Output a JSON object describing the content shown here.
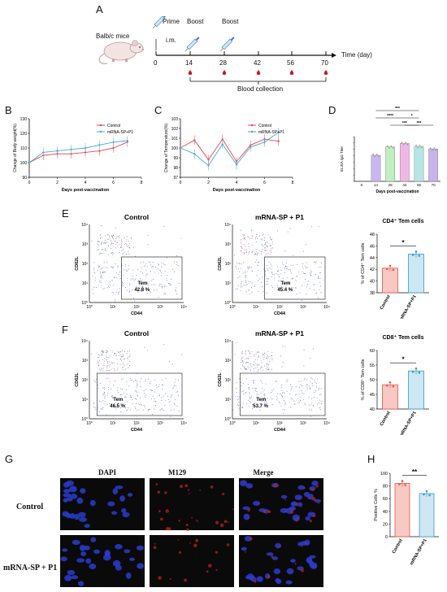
{
  "panels": {
    "A": "A",
    "B": "B",
    "C": "C",
    "D": "D",
    "E": "E",
    "F": "F",
    "G": "G",
    "H": "H"
  },
  "timeline": {
    "mouse_label": "Balb/c mice",
    "prime": "Prime",
    "route": "i.m.",
    "boost1": "Boost",
    "boost2": "Boost",
    "days": [
      "0",
      "14",
      "28",
      "42",
      "56",
      "70"
    ],
    "axis_label": "Time (day)",
    "blood_label": "Blood collection"
  },
  "chart_data": [
    {
      "panel": "B",
      "type": "line",
      "xlabel": "Days post-vaccination",
      "ylabel": "Change of Body weight(%)",
      "xlim": [
        0,
        8
      ],
      "ylim": [
        90,
        130
      ],
      "xticks": [
        "0",
        "2",
        "4",
        "6",
        "8"
      ],
      "yticks": [
        "90",
        "100",
        "110",
        "120",
        "130"
      ],
      "legend_position": "top-right",
      "x": [
        0,
        1,
        2,
        3,
        4,
        5,
        6,
        7
      ],
      "series": [
        {
          "name": "Control",
          "values": [
            100,
            105,
            106,
            106,
            107,
            108,
            110,
            114
          ],
          "color": "#e8474e"
        },
        {
          "name": "mRNA-SP+P1",
          "values": [
            100,
            107,
            108,
            109,
            110,
            112,
            114,
            115
          ],
          "color": "#4aa6d8"
        }
      ]
    },
    {
      "panel": "C",
      "type": "line",
      "xlabel": "Days post-vaccination",
      "ylabel": "Change of Temperature(%)",
      "xlim": [
        0,
        8
      ],
      "ylim": [
        97,
        103
      ],
      "xticks": [
        "0",
        "2",
        "4",
        "6",
        "8"
      ],
      "yticks": [
        "97",
        "98",
        "99",
        "100",
        "101",
        "102",
        "103"
      ],
      "legend_position": "top-right",
      "x": [
        0,
        1,
        2,
        3,
        4,
        5,
        6,
        7
      ],
      "series": [
        {
          "name": "Control",
          "values": [
            100,
            100.8,
            98.8,
            100.9,
            98.6,
            100.3,
            100.9,
            100.7
          ],
          "color": "#e8474e"
        },
        {
          "name": "mRNA-SP+P1",
          "values": [
            100,
            99.4,
            98.2,
            100.4,
            98.3,
            100.1,
            100.6,
            101.6
          ],
          "color": "#4aa6d8"
        }
      ]
    },
    {
      "panel": "D",
      "type": "bar",
      "xlabel": "Days post-vaccination",
      "ylabel": "ELISA IgG Titer",
      "log_scale": true,
      "categories": [
        "0",
        "14",
        "28",
        "42",
        "56",
        "70"
      ],
      "values": [
        0,
        12000,
        250000,
        900000,
        300000,
        120000
      ],
      "colors": [
        "#ffffff",
        "#c9b8f0",
        "#bff0bf",
        "#f2b6e6",
        "#b7e6e6",
        "#c8b4ea"
      ],
      "significance": [
        "***",
        "****",
        "***",
        "***",
        "*"
      ]
    },
    {
      "panel": "E",
      "type": "bar",
      "title": "CD4⁺ Tem cells",
      "ylabel": "% of CD4⁺ Tem cells",
      "categories": [
        "Control",
        "mRNA-SP+P1"
      ],
      "values": [
        42.2,
        44.6
      ],
      "ylim": [
        38,
        48
      ],
      "yticks": [
        "38",
        "40",
        "42",
        "44",
        "46",
        "48"
      ],
      "colors": [
        "#f7c9c2",
        "#cde7f3"
      ],
      "significance": "*"
    },
    {
      "panel": "F",
      "type": "bar",
      "title": "CD8⁺ Tem cells",
      "ylabel": "% of CD8⁺ Tem cells",
      "categories": [
        "Control",
        "mRNA-SP+P1"
      ],
      "values": [
        48.3,
        53.0
      ],
      "ylim": [
        40,
        60
      ],
      "yticks": [
        "40",
        "45",
        "50",
        "55",
        "60"
      ],
      "colors": [
        "#f7c9c2",
        "#cde7f3"
      ],
      "significance": "*"
    },
    {
      "panel": "H",
      "type": "bar",
      "ylabel": "Positive Cells %",
      "categories": [
        "Control",
        "mRNA-SP+P1"
      ],
      "values": [
        84,
        68
      ],
      "ylim": [
        0,
        100
      ],
      "yticks": [
        "0",
        "20",
        "40",
        "60",
        "80",
        "100"
      ],
      "colors": [
        "#f7c9c2",
        "#cde7f3"
      ],
      "significance": "**"
    }
  ],
  "flow": {
    "E": [
      {
        "title": "Control",
        "gate": "Tem",
        "pct": "42.8 %"
      },
      {
        "title": "mRNA-SP + P1",
        "gate": "Tem",
        "pct": "45.4 %"
      }
    ],
    "F": [
      {
        "title": "Control",
        "gate": "Tem",
        "pct": "46.5 %"
      },
      {
        "title": "mRNA-SP + P1",
        "gate": "Tem",
        "pct": "53.7 %"
      }
    ],
    "x_axis": "CD44",
    "y_axis": "CD62L",
    "ticks": [
      "10⁰",
      "10¹",
      "10²",
      "10³",
      "10⁴"
    ]
  },
  "micro": {
    "columns": [
      "DAPI",
      "M129",
      "Merge"
    ],
    "rows": [
      "Control",
      "mRNA-SP + P1"
    ]
  }
}
